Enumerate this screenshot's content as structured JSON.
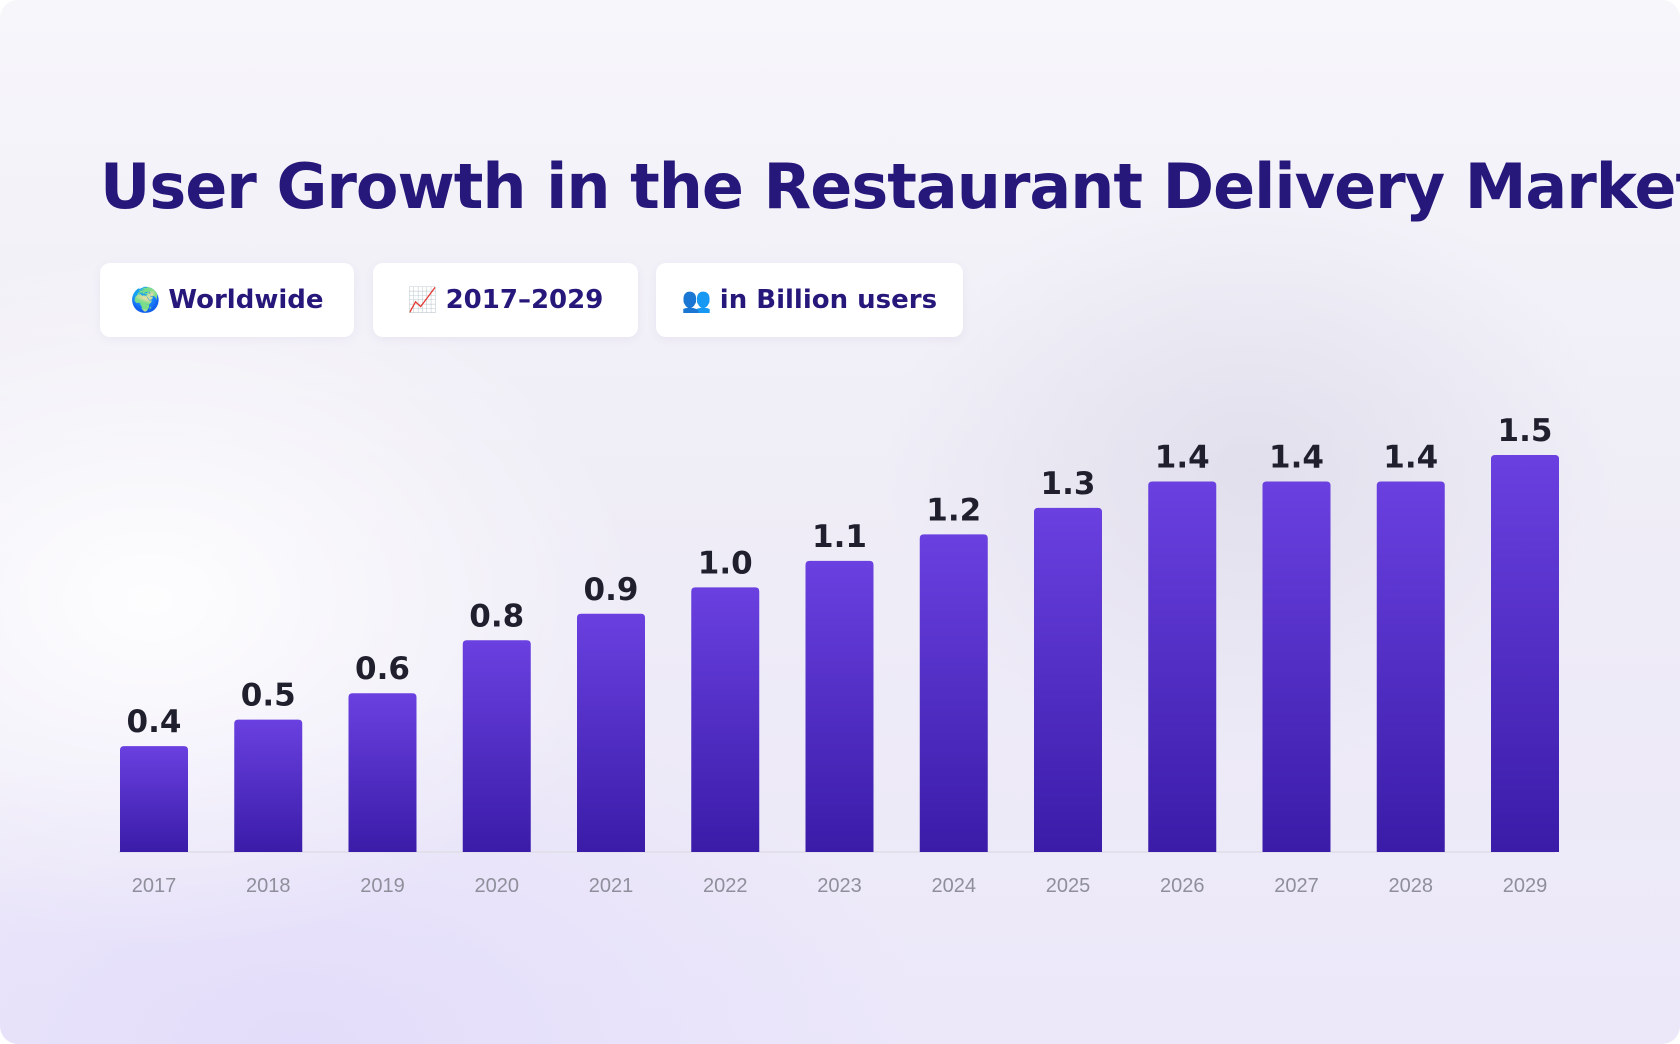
{
  "title": "User Growth in the Restaurant Delivery Market",
  "chips": [
    {
      "icon": "🌍",
      "icon_name": "globe-icon",
      "label": "Worldwide"
    },
    {
      "icon": "📈",
      "icon_name": "chart-increasing-icon",
      "label": "2017–2029"
    },
    {
      "icon": "👥",
      "icon_name": "users-icon",
      "label": "in Billion users"
    }
  ],
  "colors": {
    "title": "#26177a",
    "bar_top": "#6a40e0",
    "bar_bottom": "#3a1ca8",
    "value_label": "#1f1f2e",
    "tick_label": "#8f8f9c"
  },
  "chart_data": {
    "type": "bar",
    "title": "User Growth in the Restaurant Delivery Market",
    "xlabel": "",
    "ylabel": "",
    "categories": [
      "2017",
      "2018",
      "2019",
      "2020",
      "2021",
      "2022",
      "2023",
      "2024",
      "2025",
      "2026",
      "2027",
      "2028",
      "2029"
    ],
    "values": [
      0.4,
      0.5,
      0.6,
      0.8,
      0.9,
      1.0,
      1.1,
      1.2,
      1.3,
      1.4,
      1.4,
      1.4,
      1.5
    ],
    "value_labels": [
      "0.4",
      "0.5",
      "0.6",
      "0.8",
      "0.9",
      "1.0",
      "1.1",
      "1.2",
      "1.3",
      "1.4",
      "1.4",
      "1.4",
      "1.5"
    ],
    "ylim": [
      0,
      1.5
    ],
    "grid": false,
    "legend": "none"
  }
}
